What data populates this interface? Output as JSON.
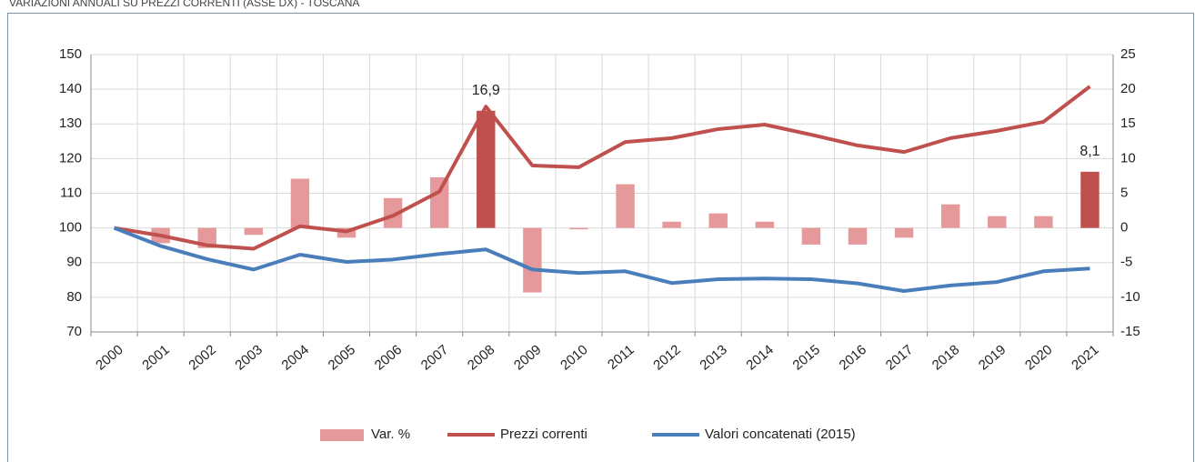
{
  "chart_data": {
    "type": "combo",
    "title": "VARIAZIONI ANNUALI SU PREZZI CORRENTI (ASSE DX) - TOSCANA",
    "categories": [
      "2000",
      "2001",
      "2002",
      "2003",
      "2004",
      "2005",
      "2006",
      "2007",
      "2008",
      "2009",
      "2010",
      "2011",
      "2012",
      "2013",
      "2014",
      "2015",
      "2016",
      "2017",
      "2018",
      "2019",
      "2020",
      "2021"
    ],
    "ylim": [
      70,
      150
    ],
    "yticks": [
      70,
      80,
      90,
      100,
      110,
      120,
      130,
      140,
      150
    ],
    "y2lim": [
      -15,
      25
    ],
    "y2ticks": [
      -15,
      -10,
      -5,
      0,
      5,
      10,
      15,
      20,
      25
    ],
    "grid": true,
    "legend": "bottom",
    "series": [
      {
        "name": "Var. %",
        "type": "bar",
        "axis": "y2",
        "color": "#e6999a",
        "colors": [
          "#e6999a",
          "#e6999a",
          "#e6999a",
          "#e6999a",
          "#e6999a",
          "#e6999a",
          "#e6999a",
          "#e6999a",
          "#c0504d",
          "#e6999a",
          "#e6999a",
          "#e6999a",
          "#e6999a",
          "#e6999a",
          "#e6999a",
          "#e6999a",
          "#e6999a",
          "#e6999a",
          "#e6999a",
          "#e6999a",
          "#e6999a",
          "#c0504d"
        ],
        "values": [
          null,
          -2.2,
          -2.9,
          -1.0,
          7.1,
          -1.4,
          4.3,
          7.3,
          16.9,
          -9.3,
          -0.2,
          6.3,
          0.9,
          2.1,
          0.9,
          -2.4,
          -2.4,
          -1.4,
          3.4,
          1.7,
          1.7,
          8.1
        ],
        "value_labels": [
          null,
          null,
          null,
          null,
          null,
          null,
          null,
          null,
          "16,9",
          null,
          null,
          null,
          null,
          null,
          null,
          null,
          null,
          null,
          null,
          null,
          null,
          "8,1"
        ]
      },
      {
        "name": "Prezzi correnti",
        "type": "line",
        "color": "#c0504d",
        "values": [
          100,
          97.8,
          95,
          94,
          100.5,
          99,
          103.5,
          110.5,
          135,
          118,
          117.5,
          124.8,
          125.9,
          128.5,
          129.8,
          126.9,
          123.8,
          121.9,
          125.9,
          128,
          130.6,
          140.8
        ]
      },
      {
        "name": "Valori concatenati (2015)",
        "type": "line",
        "color": "#4a7ebb",
        "values": [
          100,
          94.8,
          91,
          88,
          92.3,
          90.2,
          90.9,
          92.5,
          93.8,
          88,
          87,
          87.5,
          84.1,
          85.2,
          85.4,
          85.2,
          84,
          81.8,
          83.4,
          84.4,
          87.5,
          88.3
        ]
      }
    ]
  }
}
